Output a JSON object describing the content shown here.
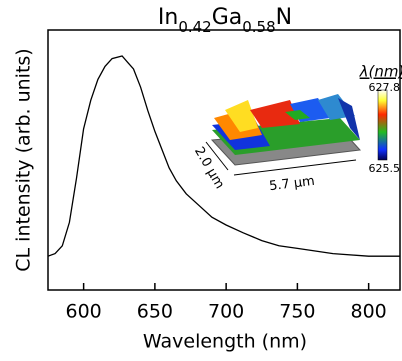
{
  "chart_data": {
    "type": "line",
    "title_parts": [
      {
        "text": "In"
      },
      {
        "text": "0.42",
        "sub": true
      },
      {
        "text": "Ga"
      },
      {
        "text": "0.58",
        "sub": true
      },
      {
        "text": "N"
      }
    ],
    "x_label": "Wavelength (nm)",
    "y_label": "CL intensity (arb. units)",
    "x": [
      575,
      580,
      585,
      590,
      595,
      600,
      605,
      610,
      615,
      620,
      627,
      635,
      640,
      645,
      650,
      655,
      660,
      665,
      672,
      680,
      690,
      700,
      712,
      725,
      737,
      750,
      775,
      800,
      822
    ],
    "values": [
      0.13,
      0.14,
      0.17,
      0.26,
      0.43,
      0.62,
      0.73,
      0.81,
      0.86,
      0.89,
      0.9,
      0.85,
      0.78,
      0.69,
      0.61,
      0.54,
      0.47,
      0.42,
      0.37,
      0.33,
      0.28,
      0.25,
      0.22,
      0.19,
      0.17,
      0.16,
      0.14,
      0.13,
      0.13
    ],
    "color": "#000000",
    "xlim": [
      575,
      822
    ],
    "xticks": [
      600,
      650,
      700,
      750,
      800
    ],
    "ylim": [
      0,
      1
    ],
    "inset": {
      "colorbar_label": "λ(nm)",
      "colorbar_ticks": [
        625.5,
        627.8
      ],
      "width_label": "5.7 μm",
      "depth_label": "2.0 μm"
    }
  }
}
